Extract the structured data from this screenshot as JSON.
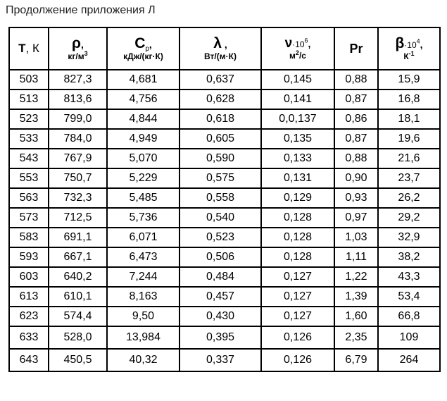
{
  "caption": "Продолжение приложения Л",
  "headers": {
    "t": {
      "symbol": "T",
      "unit": ", К"
    },
    "rho": {
      "symbol": "ρ",
      "unit_main": "кг/м",
      "unit_sup": "3"
    },
    "cp": {
      "symbol": "C",
      "symbol_sub": "р",
      "unit": "кДж/(кг·К)"
    },
    "lambda": {
      "symbol": "λ",
      "unit": "Вт/(м·К)"
    },
    "nu": {
      "symbol": "ν",
      "mult": "·10",
      "mult_sup": "6",
      "unit_main": "м",
      "unit_sup": "2",
      "unit_rest": "/с"
    },
    "pr": {
      "symbol": "Pr"
    },
    "beta": {
      "symbol": "β",
      "mult": "·10",
      "mult_sup": "4",
      "unit_main": "К",
      "unit_sup": "-1"
    }
  },
  "rows": [
    [
      "503",
      "827,3",
      "4,681",
      "0,637",
      "0,145",
      "0,88",
      "15,9"
    ],
    [
      "513",
      "813,6",
      "4,756",
      "0,628",
      "0,141",
      "0,87",
      "16,8"
    ],
    [
      "523",
      "799,0",
      "4,844",
      "0,618",
      "0,0,137",
      "0,86",
      "18,1"
    ],
    [
      "533",
      "784,0",
      "4,949",
      "0,605",
      "0,135",
      "0,87",
      "19,6"
    ],
    [
      "543",
      "767,9",
      "5,070",
      "0,590",
      "0,133",
      "0,88",
      "21,6"
    ],
    [
      "553",
      "750,7",
      "5,229",
      "0,575",
      "0,131",
      "0,90",
      "23,7"
    ],
    [
      "563",
      "732,3",
      "5,485",
      "0,558",
      "0,129",
      "0,93",
      "26,2"
    ],
    [
      "573",
      "712,5",
      "5,736",
      "0,540",
      "0,128",
      "0,97",
      "29,2"
    ],
    [
      "583",
      "691,1",
      "6,071",
      "0,523",
      "0,128",
      "1,03",
      "32,9"
    ],
    [
      "593",
      "667,1",
      "6,473",
      "0,506",
      "0,128",
      "1,11",
      "38,2"
    ],
    [
      "603",
      "640,2",
      "7,244",
      "0,484",
      "0,127",
      "1,22",
      "43,3"
    ],
    [
      "613",
      "610,1",
      "8,163",
      "0,457",
      "0,127",
      "1,39",
      "53,4"
    ],
    [
      "623",
      "574,4",
      "9,50",
      "0,430",
      "0,127",
      "1,60",
      "66,8"
    ],
    [
      "633",
      "528,0",
      "13,984",
      "0,395",
      "0,126",
      "2,35",
      "109"
    ],
    [
      "643",
      "450,5",
      "40,32",
      "0,337",
      "0,126",
      "6,79",
      "264"
    ]
  ]
}
